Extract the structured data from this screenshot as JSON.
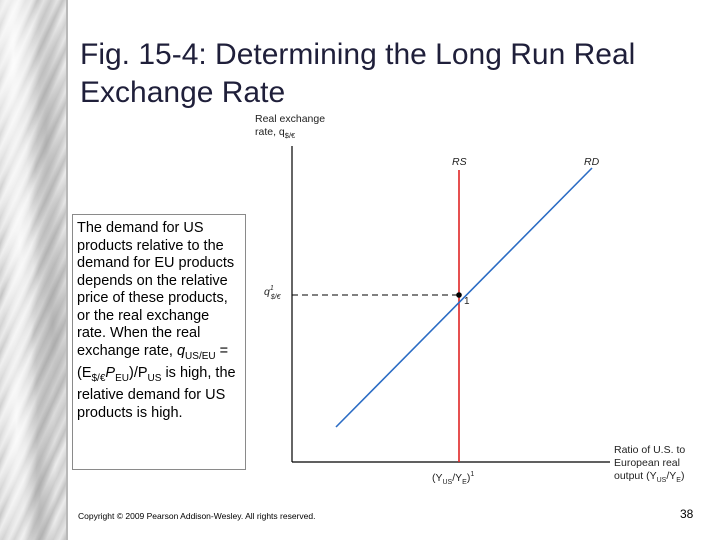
{
  "slide": {
    "title": "Fig. 15-4: Determining the Long Run Real Exchange Rate",
    "footer": "Copyright © 2009 Pearson Addison-Wesley. All rights reserved.",
    "page_number": "38"
  },
  "textbox": {
    "intro": "The demand for US products relative to the demand for EU products depends on the relative price of these products, or the real exchange rate. When the real exchange rate,",
    "formula": {
      "q": "q",
      "q_sub": "US/EU",
      "eq": " = (E",
      "e_sub": "$/€",
      "p": "P",
      "p_sub": "EU",
      "close": ")/P",
      "p2_sub": "US"
    },
    "outro": "is high, the relative demand for US products is high."
  },
  "chart_data": {
    "type": "line",
    "ylabel_line1": "Real exchange",
    "ylabel_line2": "rate, q",
    "ylabel_sub": "$/€",
    "xlabel_line1": "Ratio of U.S. to",
    "xlabel_line2": "European real",
    "xlabel_line3": "output (Y",
    "xlabel_sub1": "US",
    "xlabel_mid": "/Y",
    "xlabel_sub2": "E",
    "xlabel_end": ")",
    "y_tick": {
      "main": "q",
      "sup": "1",
      "sub": "$/€"
    },
    "x_tick": {
      "open": "(Y",
      "sub1": "US",
      "mid": "/Y",
      "sub2": "E",
      "close": ")",
      "sup": "1"
    },
    "series": [
      {
        "name": "RS",
        "kind": "vertical",
        "color": "#e02424"
      },
      {
        "name": "RD",
        "kind": "upward-sloping",
        "color": "#2b6cc4"
      }
    ],
    "equilibrium_label": "1"
  }
}
